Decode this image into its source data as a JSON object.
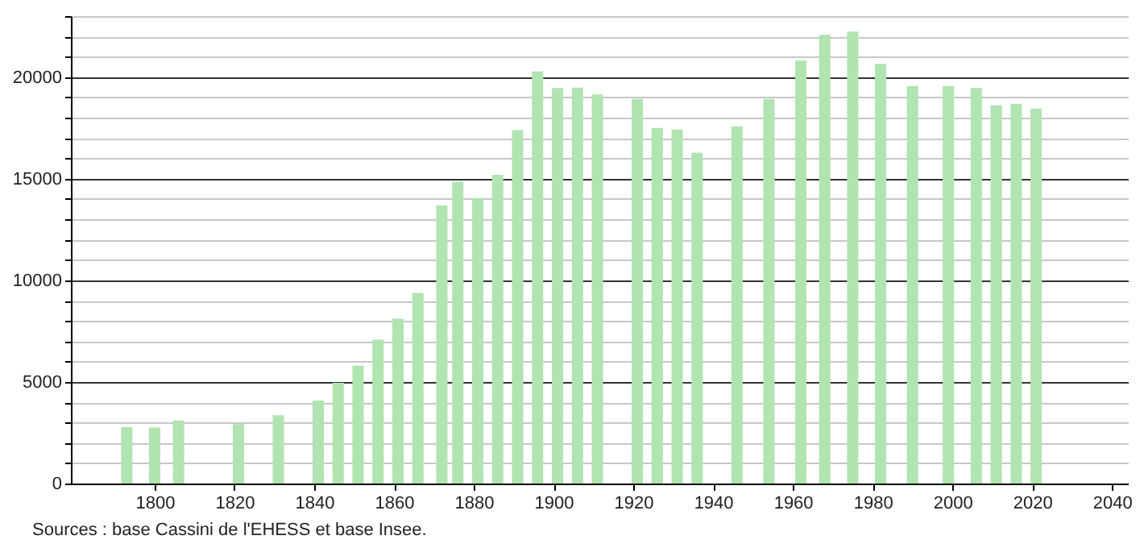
{
  "chart_data": {
    "type": "bar",
    "x": [
      1793,
      1800,
      1806,
      1821,
      1831,
      1841,
      1846,
      1851,
      1856,
      1861,
      1866,
      1872,
      1876,
      1881,
      1886,
      1891,
      1896,
      1901,
      1906,
      1911,
      1921,
      1926,
      1931,
      1936,
      1946,
      1954,
      1962,
      1968,
      1975,
      1982,
      1990,
      1999,
      2006,
      2011,
      2016,
      2021
    ],
    "values": [
      2780,
      2760,
      3100,
      2920,
      3360,
      4080,
      4960,
      5800,
      7080,
      8110,
      9380,
      13680,
      14850,
      14050,
      15190,
      17390,
      20280,
      19460,
      19480,
      19140,
      18930,
      17500,
      17420,
      16280,
      17570,
      18930,
      20810,
      22080,
      22240,
      20650,
      19560,
      19560,
      19460,
      18610,
      18690,
      18450
    ],
    "color": "#b0e4b0",
    "xlim": [
      1779,
      2044
    ],
    "xticks": [
      1800,
      1820,
      1840,
      1860,
      1880,
      1900,
      1920,
      1940,
      1960,
      1980,
      2000,
      2020,
      2040
    ],
    "ylim": [
      0,
      23000
    ],
    "yticks": [
      0,
      {
        "value": 1000,
        "label": null
      },
      {
        "value": 2000,
        "label": null
      },
      {
        "value": 3000,
        "label": null
      },
      {
        "value": 4000,
        "label": null
      },
      5000,
      {
        "value": 6000,
        "label": null
      },
      {
        "value": 7000,
        "label": null
      },
      {
        "value": 8000,
        "label": null
      },
      {
        "value": 9000,
        "label": null
      },
      10000,
      {
        "value": 11000,
        "label": null
      },
      {
        "value": 12000,
        "label": null
      },
      {
        "value": 13000,
        "label": null
      },
      {
        "value": 14000,
        "label": null
      },
      15000,
      {
        "value": 16000,
        "label": null
      },
      {
        "value": 17000,
        "label": null
      },
      {
        "value": 18000,
        "label": null
      },
      {
        "value": 19000,
        "label": null
      },
      20000,
      {
        "value": 21000,
        "label": null
      },
      {
        "value": 22000,
        "label": null
      },
      {
        "value": 23000,
        "label": null
      }
    ],
    "grid": "y",
    "annotations": [
      "Sources : base Cassini de l'EHESS et base Insee."
    ]
  }
}
